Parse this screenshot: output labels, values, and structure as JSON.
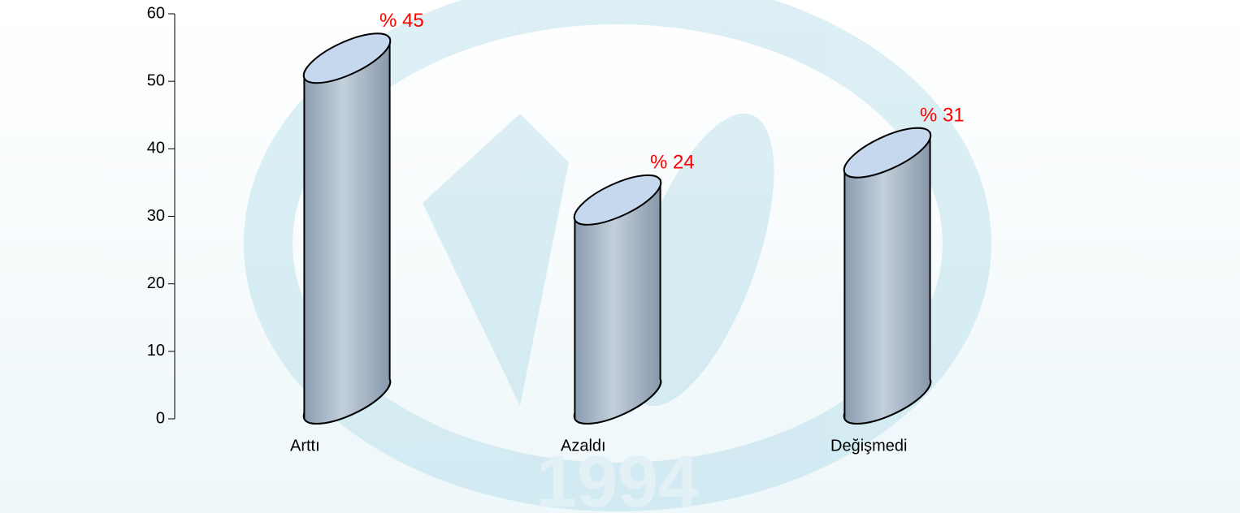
{
  "chart_data": {
    "type": "cylinder",
    "categories": [
      "Arttı",
      "Azaldı",
      "Değişmedi"
    ],
    "values": [
      45,
      24,
      31
    ],
    "value_labels": [
      "% 45",
      "% 24",
      "% 31"
    ],
    "color": "#a7b8c8",
    "label_color": "#ff0000",
    "ylim": [
      0,
      60
    ],
    "yticks": [
      0,
      10,
      20,
      30,
      40,
      50,
      60
    ]
  }
}
